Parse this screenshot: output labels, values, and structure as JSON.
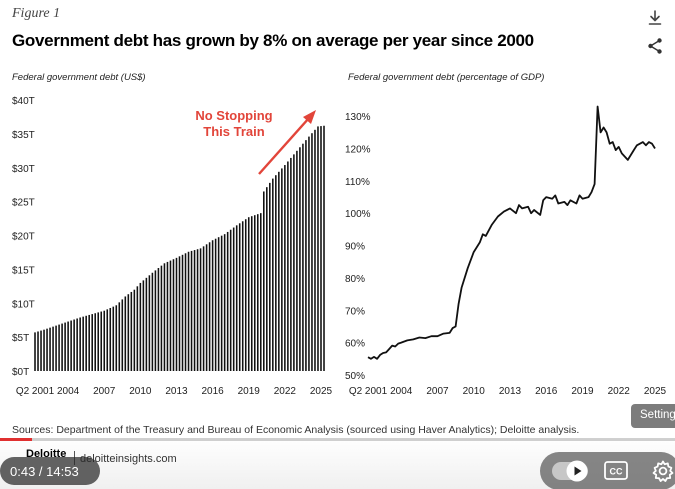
{
  "figure": {
    "label": "Figure 1",
    "title": "Government debt has grown by 8% on average per year since 2000"
  },
  "icons": {
    "download": "download-icon",
    "share": "share-icon",
    "closed_captions": "cc-icon",
    "settings": "gear-icon",
    "autoplay": "autoplay-toggle"
  },
  "sources": "Sources: Department of the Treasury and Bureau of Economic Analysis (sourced using Haver Analytics); Deloitte analysis.",
  "brand": {
    "name": "Deloitte",
    "url": "deloitteinsights.com"
  },
  "player": {
    "time": "0:43 / 14:53",
    "progress_fraction": 0.048,
    "settings_tooltip": "Settings"
  },
  "colors": {
    "accent": "#e2453a",
    "bars": "#111111",
    "line": "#111111"
  },
  "chart_data": [
    {
      "type": "bar",
      "title": "Federal government debt (US$)",
      "xlabel": "",
      "ylabel": "",
      "ylim": [
        0,
        40
      ],
      "yticks": [
        "$0T",
        "$5T",
        "$10T",
        "$15T",
        "$20T",
        "$25T",
        "$30T",
        "$35T",
        "$40T"
      ],
      "xticks": [
        {
          "label": "Q2 2001",
          "year": 2001.25
        },
        {
          "label": "2004",
          "year": 2004
        },
        {
          "label": "2007",
          "year": 2007
        },
        {
          "label": "2010",
          "year": 2010
        },
        {
          "label": "2013",
          "year": 2013
        },
        {
          "label": "2016",
          "year": 2016
        },
        {
          "label": "2019",
          "year": 2019
        },
        {
          "label": "2022",
          "year": 2022
        },
        {
          "label": "2025",
          "year": 2025
        }
      ],
      "x_range": [
        2001.25,
        2025.25
      ],
      "anchor_points": [
        [
          2001.25,
          5.7
        ],
        [
          2002,
          6.1
        ],
        [
          2003,
          6.7
        ],
        [
          2004,
          7.3
        ],
        [
          2005,
          7.9
        ],
        [
          2006,
          8.4
        ],
        [
          2007,
          8.9
        ],
        [
          2008,
          9.7
        ],
        [
          2008.75,
          11.0
        ],
        [
          2009.5,
          12.0
        ],
        [
          2010,
          13.0
        ],
        [
          2011,
          14.5
        ],
        [
          2012,
          15.9
        ],
        [
          2013,
          16.7
        ],
        [
          2014,
          17.6
        ],
        [
          2015,
          18.1
        ],
        [
          2016,
          19.3
        ],
        [
          2017,
          20.2
        ],
        [
          2018,
          21.5
        ],
        [
          2019,
          22.7
        ],
        [
          2020,
          23.3
        ],
        [
          2020.25,
          26.5
        ],
        [
          2021,
          28.4
        ],
        [
          2022,
          30.4
        ],
        [
          2023,
          32.5
        ],
        [
          2024,
          34.6
        ],
        [
          2024.75,
          36.1
        ],
        [
          2025.25,
          36.2
        ]
      ],
      "annotation": {
        "text": [
          "No Stopping",
          "This Train"
        ]
      }
    },
    {
      "type": "line",
      "title": "Federal government debt (percentage of GDP)",
      "xlabel": "",
      "ylabel": "",
      "ylim": [
        50,
        135
      ],
      "yticks": [
        "50%",
        "60%",
        "70%",
        "80%",
        "90%",
        "100%",
        "110%",
        "120%",
        "130%"
      ],
      "xticks": [
        {
          "label": "Q2 2001",
          "year": 2001.25
        },
        {
          "label": "2004",
          "year": 2004
        },
        {
          "label": "2007",
          "year": 2007
        },
        {
          "label": "2010",
          "year": 2010
        },
        {
          "label": "2013",
          "year": 2013
        },
        {
          "label": "2016",
          "year": 2016
        },
        {
          "label": "2019",
          "year": 2019
        },
        {
          "label": "2022",
          "year": 2022
        },
        {
          "label": "2025",
          "year": 2025
        }
      ],
      "x_range": [
        2001.25,
        2025.25
      ],
      "points": [
        [
          2001.25,
          55.5
        ],
        [
          2001.5,
          55.0
        ],
        [
          2001.75,
          55.6
        ],
        [
          2002,
          55.0
        ],
        [
          2002.25,
          56.2
        ],
        [
          2002.5,
          56.8
        ],
        [
          2002.75,
          57.0
        ],
        [
          2003,
          58.0
        ],
        [
          2003.25,
          59.1
        ],
        [
          2003.5,
          58.8
        ],
        [
          2003.75,
          59.7
        ],
        [
          2004,
          60.0
        ],
        [
          2004.5,
          60.7
        ],
        [
          2005,
          61.0
        ],
        [
          2005.5,
          61.6
        ],
        [
          2006,
          61.4
        ],
        [
          2006.5,
          62.0
        ],
        [
          2007,
          62.0
        ],
        [
          2007.5,
          62.8
        ],
        [
          2008,
          63.0
        ],
        [
          2008.25,
          64.5
        ],
        [
          2008.5,
          65.0
        ],
        [
          2008.75,
          72.0
        ],
        [
          2009,
          77.0
        ],
        [
          2009.5,
          83.0
        ],
        [
          2010,
          88.0
        ],
        [
          2010.5,
          91.0
        ],
        [
          2010.75,
          93.5
        ],
        [
          2011,
          93.0
        ],
        [
          2011.5,
          96.5
        ],
        [
          2012,
          99.0
        ],
        [
          2012.5,
          100.5
        ],
        [
          2013,
          101.5
        ],
        [
          2013.5,
          100.0
        ],
        [
          2013.75,
          102.5
        ],
        [
          2014,
          101.5
        ],
        [
          2014.5,
          102.0
        ],
        [
          2014.75,
          100.0
        ],
        [
          2015,
          101.0
        ],
        [
          2015.5,
          99.5
        ],
        [
          2015.75,
          104.0
        ],
        [
          2016,
          105.0
        ],
        [
          2016.5,
          104.5
        ],
        [
          2016.75,
          105.5
        ],
        [
          2017,
          103.0
        ],
        [
          2017.5,
          103.5
        ],
        [
          2017.75,
          102.5
        ],
        [
          2018,
          104.0
        ],
        [
          2018.5,
          103.0
        ],
        [
          2018.75,
          105.5
        ],
        [
          2019,
          104.5
        ],
        [
          2019.5,
          105.0
        ],
        [
          2019.75,
          106.5
        ],
        [
          2020,
          109.0
        ],
        [
          2020.25,
          133.0
        ],
        [
          2020.5,
          125.0
        ],
        [
          2020.75,
          126.5
        ],
        [
          2021,
          125.0
        ],
        [
          2021.25,
          121.5
        ],
        [
          2021.5,
          122.0
        ],
        [
          2021.75,
          119.5
        ],
        [
          2022,
          120.5
        ],
        [
          2022.25,
          118.5
        ],
        [
          2022.5,
          117.5
        ],
        [
          2022.75,
          116.5
        ],
        [
          2023,
          118.0
        ],
        [
          2023.25,
          119.5
        ],
        [
          2023.5,
          121.0
        ],
        [
          2023.75,
          121.5
        ],
        [
          2024,
          122.0
        ],
        [
          2024.25,
          121.0
        ],
        [
          2024.5,
          122.0
        ],
        [
          2024.75,
          121.5
        ],
        [
          2025,
          120.0
        ]
      ]
    }
  ]
}
